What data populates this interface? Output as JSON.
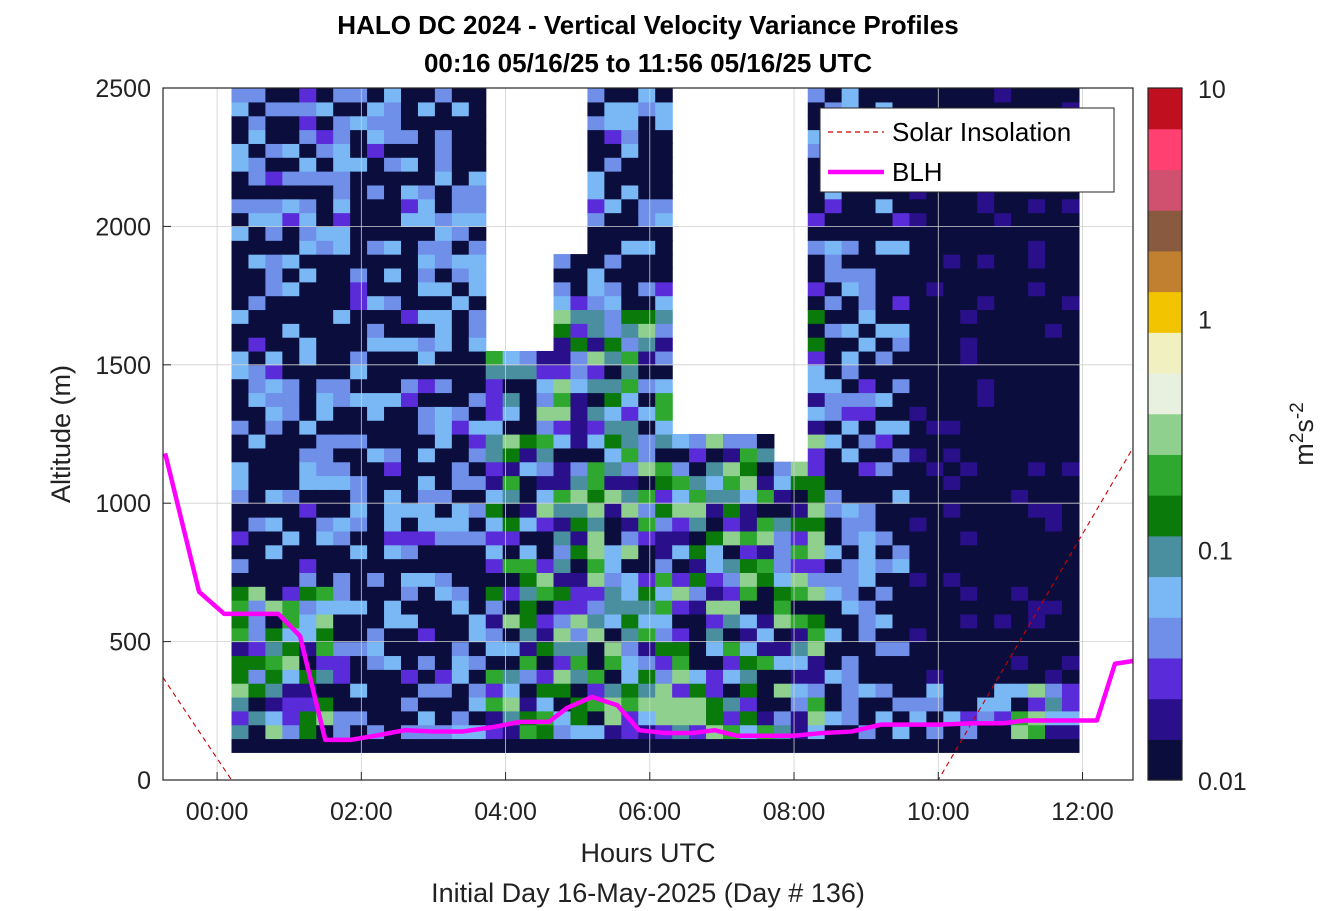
{
  "chart_data": {
    "type": "heatmap",
    "title": "HALO DC 2024 - Vertical Velocity Variance Profiles",
    "subtitle": "00:16 05/16/25 to 11:56 05/16/25  UTC",
    "xlabel": "Hours UTC",
    "xlabel_sub": "Initial Day 16-May-2025 (Day # 136)",
    "ylabel": "Altitude (m)",
    "colorbar_label_base": "m",
    "colorbar_label_sup1": "2",
    "colorbar_label_mid": "s",
    "colorbar_label_sup2": "-2",
    "xlim": [
      -0.75,
      12.7
    ],
    "ylim": [
      0,
      2500
    ],
    "xticks": [
      "00:00",
      "02:00",
      "04:00",
      "06:00",
      "08:00",
      "10:00",
      "12:00"
    ],
    "xtick_values": [
      0,
      2,
      4,
      6,
      8,
      10,
      12
    ],
    "yticks": [
      "0",
      "500",
      "1000",
      "1500",
      "2000",
      "2500"
    ],
    "ytick_values": [
      0,
      500,
      1000,
      1500,
      2000,
      2500
    ],
    "colorbar_ticks": [
      "0.01",
      "0.1",
      "1",
      "10"
    ],
    "colorbar_tick_values": [
      0.01,
      0.1,
      1,
      10
    ],
    "colorbar_scale": "log",
    "colormap": [
      "#0b0e3d",
      "#2a0f8a",
      "#5a2bd8",
      "#6f8fe8",
      "#7ab8f5",
      "#4a8fa0",
      "#0a7a0a",
      "#2ea82e",
      "#8fd08f",
      "#e8f0e0",
      "#f0f0c0",
      "#f2c400",
      "#c08030",
      "#8a5a40",
      "#d05070",
      "#ff4070",
      "#c01020"
    ],
    "grid": true,
    "legend_position": "top-right",
    "series": [
      {
        "name": "Solar Insolation",
        "style": "dashed",
        "color": "#cc0000",
        "x": [
          -0.75,
          0.2,
          10.0,
          12.7
        ],
        "y": [
          370,
          0,
          0,
          1200
        ]
      },
      {
        "name": "BLH",
        "style": "solid",
        "color": "#ff00ff",
        "x": [
          -0.72,
          -0.25,
          0.1,
          0.45,
          0.85,
          1.15,
          1.5,
          1.85,
          2.2,
          2.6,
          3.0,
          3.4,
          3.8,
          4.2,
          4.6,
          4.85,
          5.2,
          5.55,
          5.85,
          6.2,
          6.6,
          6.9,
          7.2,
          7.6,
          8.0,
          8.4,
          8.8,
          9.2,
          9.6,
          10.0,
          10.5,
          10.9,
          11.2,
          11.6,
          11.95,
          12.2,
          12.45,
          12.7
        ],
        "y": [
          1180,
          680,
          600,
          600,
          600,
          520,
          145,
          145,
          160,
          180,
          175,
          175,
          190,
          210,
          210,
          260,
          300,
          270,
          180,
          170,
          170,
          180,
          160,
          160,
          160,
          170,
          175,
          200,
          200,
          200,
          205,
          205,
          215,
          215,
          215,
          215,
          420,
          430
        ]
      }
    ],
    "heatmap_summary": {
      "x_start": 0.2,
      "x_end": 11.95,
      "y_start": 100,
      "y_end": 2500
    }
  }
}
